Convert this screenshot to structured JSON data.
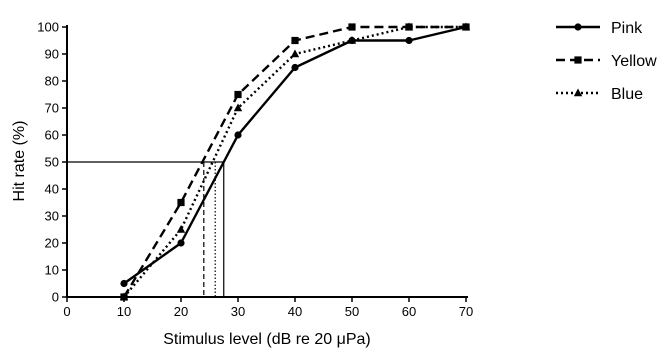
{
  "chart_data": {
    "type": "line",
    "xlabel": "Stimulus level (dB re 20 μPa)",
    "ylabel": "Hit rate (%)",
    "xlim": [
      0,
      70
    ],
    "ylim": [
      0,
      100
    ],
    "xticks": [
      0,
      10,
      20,
      30,
      40,
      50,
      60,
      70
    ],
    "yticks": [
      0,
      10,
      20,
      30,
      40,
      50,
      60,
      70,
      80,
      90,
      100
    ],
    "grid": false,
    "legend_position": "top-right",
    "x": [
      10,
      20,
      30,
      40,
      50,
      60,
      70
    ],
    "series": [
      {
        "name": "Pink",
        "values": [
          5,
          20,
          60,
          85,
          95,
          95,
          100
        ],
        "marker": "circle",
        "line_style": "solid",
        "color": "#000000"
      },
      {
        "name": "Yellow",
        "values": [
          0,
          35,
          75,
          95,
          100,
          100,
          100
        ],
        "marker": "square",
        "line_style": "dashed",
        "color": "#000000"
      },
      {
        "name": "Blue",
        "values": [
          0,
          25,
          70,
          90,
          95,
          100,
          100
        ],
        "marker": "triangle",
        "line_style": "dotted",
        "color": "#000000"
      }
    ],
    "threshold": {
      "y": 50,
      "x_values": [
        27.5,
        24,
        26
      ],
      "line_styles": [
        "solid",
        "dashed",
        "dotted"
      ]
    }
  }
}
